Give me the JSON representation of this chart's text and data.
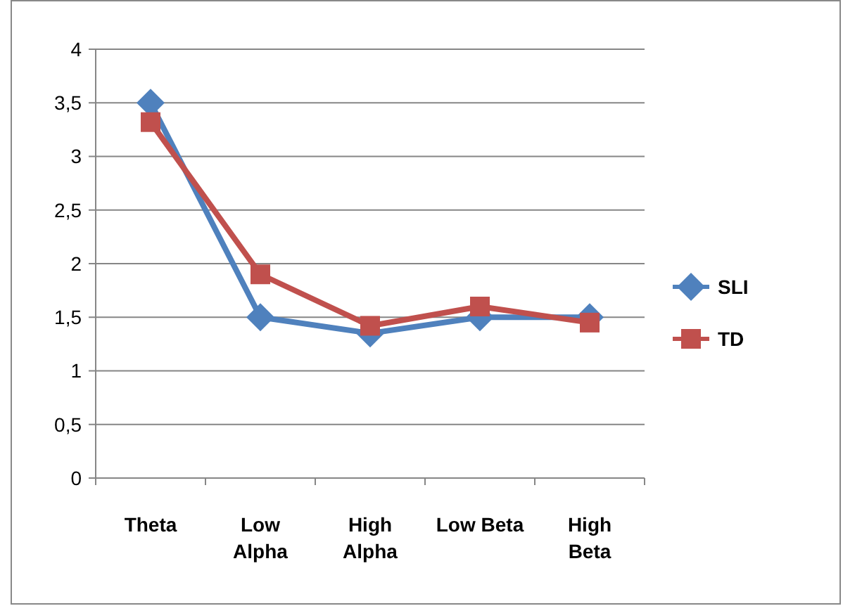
{
  "chart_data": {
    "type": "line",
    "categories": [
      "Theta",
      "Low\nAlpha",
      "High\nAlpha",
      "Low Beta",
      "High\nBeta"
    ],
    "series": [
      {
        "name": "SLI",
        "color": "#4f81bd",
        "values": [
          3.5,
          1.5,
          1.35,
          1.5,
          1.5
        ],
        "marker": "diamond"
      },
      {
        "name": "TD",
        "color": "#c0504d",
        "values": [
          3.32,
          1.9,
          1.42,
          1.6,
          1.45
        ],
        "marker": "square"
      }
    ],
    "ylim": [
      0,
      4
    ],
    "yticks": [
      {
        "value": 0,
        "label": "0"
      },
      {
        "value": 0.5,
        "label": "0,5"
      },
      {
        "value": 1,
        "label": "1"
      },
      {
        "value": 1.5,
        "label": "1,5"
      },
      {
        "value": 2,
        "label": "2"
      },
      {
        "value": 2.5,
        "label": "2,5"
      },
      {
        "value": 3,
        "label": "3"
      },
      {
        "value": 3.5,
        "label": "3,5"
      },
      {
        "value": 4,
        "label": "4"
      }
    ],
    "grid": "y",
    "legend": "right",
    "line_style": "solid"
  }
}
